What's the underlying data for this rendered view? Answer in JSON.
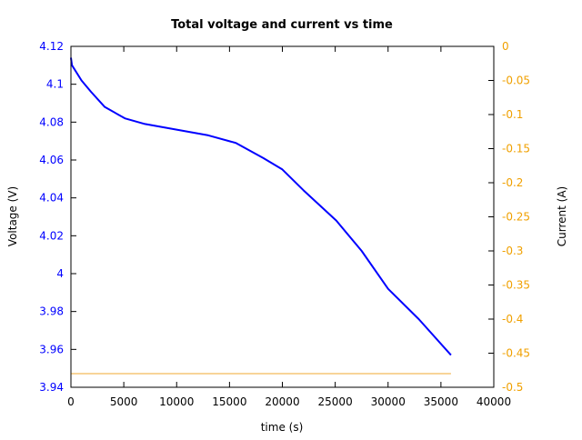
{
  "chart_data": {
    "type": "line",
    "title": "Total voltage and current vs time",
    "xlabel": "time (s)",
    "ylabel": "Voltage (V)",
    "y2label": "Current (A)",
    "xlim": [
      0,
      40000
    ],
    "ylim": [
      3.94,
      4.12
    ],
    "y2lim": [
      -0.5,
      0
    ],
    "grid": false,
    "x_ticks": [
      "0",
      "5000",
      "10000",
      "15000",
      "20000",
      "25000",
      "30000",
      "35000",
      "40000"
    ],
    "y_ticks": [
      "3.94",
      "3.96",
      "3.98",
      "4",
      "4.02",
      "4.04",
      "4.06",
      "4.08",
      "4.1",
      "4.12"
    ],
    "y2_ticks": [
      "-0.5",
      "-0.45",
      "-0.4",
      "-0.35",
      "-0.3",
      "-0.25",
      "-0.2",
      "-0.15",
      "-0.1",
      "-0.05",
      "0"
    ],
    "colors": {
      "voltage": "#0000ff",
      "current": "#f0a830",
      "y2_axis": "#f0a000"
    },
    "series": [
      {
        "axis": "left",
        "x": [
          0,
          100,
          1000,
          1900,
          3200,
          5100,
          7000,
          10000,
          13000,
          15600,
          18200,
          20000,
          22000,
          25100,
          27500,
          30000,
          32900,
          35950
        ],
        "y": [
          4.114,
          4.11,
          4.102,
          4.096,
          4.088,
          4.082,
          4.079,
          4.076,
          4.073,
          4.069,
          4.061,
          4.055,
          4.044,
          4.028,
          4.012,
          3.992,
          3.976,
          3.957
        ]
      },
      {
        "axis": "right",
        "x": [
          0,
          35950
        ],
        "y": [
          -0.48,
          -0.48
        ]
      }
    ]
  }
}
